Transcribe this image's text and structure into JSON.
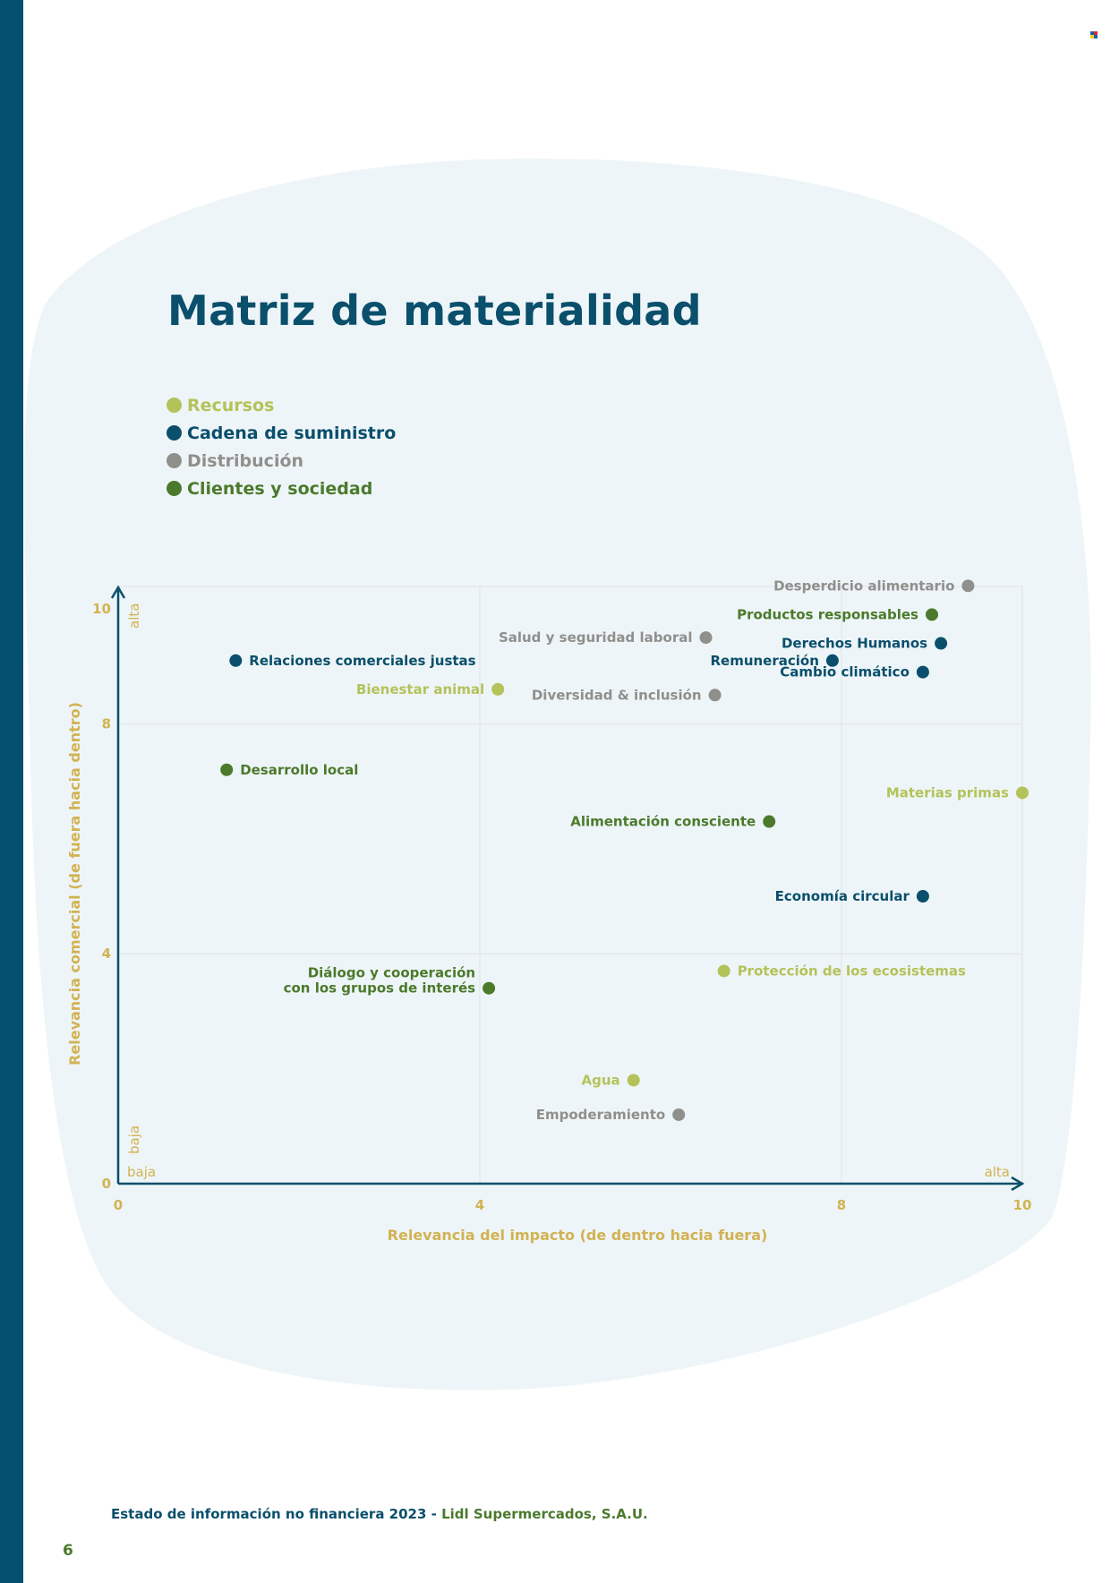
{
  "page": {
    "title": "Matriz de materialidad",
    "footer_text": "Estado de información no financiera 2023",
    "footer_separator": " - ",
    "footer_brand": "Lidl Supermercados, S.A.U.",
    "page_number": "6"
  },
  "legend": [
    {
      "label": "Recursos",
      "color": "#b3c35a"
    },
    {
      "label": "Cadena de suministro",
      "color": "#0a4f6b"
    },
    {
      "label": "Distribución",
      "color": "#8f8f8c"
    },
    {
      "label": "Clientes y sociedad",
      "color": "#4b7a2c"
    }
  ],
  "chart_data": {
    "type": "scatter",
    "xlabel": "Relevancia del impacto (de dentro hacia fuera)",
    "ylabel": "Relevancia comercial (de fuera hacia dentro)",
    "xlim": [
      0,
      10
    ],
    "ylim": [
      0,
      10
    ],
    "x_ticks": [
      "0",
      "4",
      "8",
      "10"
    ],
    "y_ticks": [
      "0",
      "4",
      "8",
      "10"
    ],
    "x_low_label": "baja",
    "x_high_label": "alta",
    "y_low_label": "baja",
    "y_high_label": "alta",
    "grid": true,
    "series": [
      {
        "name": "Recursos",
        "points": [
          {
            "label": "Bienestar animal",
            "x": 4.2,
            "y": 8.6
          },
          {
            "label": "Materias primas",
            "x": 10.0,
            "y": 6.8
          },
          {
            "label": "Protección de los ecosistemas",
            "x": 6.7,
            "y": 3.7
          },
          {
            "label": "Agua",
            "x": 5.7,
            "y": 1.8
          }
        ]
      },
      {
        "name": "Cadena de suministro",
        "points": [
          {
            "label": "Relaciones comerciales justas",
            "x": 1.3,
            "y": 9.1
          },
          {
            "label": "Derechos Humanos",
            "x": 9.1,
            "y": 9.4
          },
          {
            "label": "Remuneración",
            "x": 7.9,
            "y": 9.1
          },
          {
            "label": "Cambio climático",
            "x": 8.9,
            "y": 8.9
          },
          {
            "label": "Economía circular",
            "x": 8.9,
            "y": 5.0
          }
        ]
      },
      {
        "name": "Distribución",
        "points": [
          {
            "label": "Desperdicio alimentario",
            "x": 9.4,
            "y": 10.4
          },
          {
            "label": "Salud y seguridad laboral",
            "x": 6.5,
            "y": 9.5
          },
          {
            "label": "Diversidad & inclusión",
            "x": 6.6,
            "y": 8.5
          },
          {
            "label": "Empoderamiento",
            "x": 6.2,
            "y": 1.2
          }
        ]
      },
      {
        "name": "Clientes y sociedad",
        "points": [
          {
            "label": "Productos responsables",
            "x": 9.0,
            "y": 9.9
          },
          {
            "label": "Desarrollo local",
            "x": 1.2,
            "y": 7.2
          },
          {
            "label": "Alimentación consciente",
            "x": 7.2,
            "y": 6.3
          },
          {
            "label": "Diálogo y cooperación\ncon los grupos de interés",
            "x": 4.1,
            "y": 3.4
          }
        ]
      }
    ]
  }
}
